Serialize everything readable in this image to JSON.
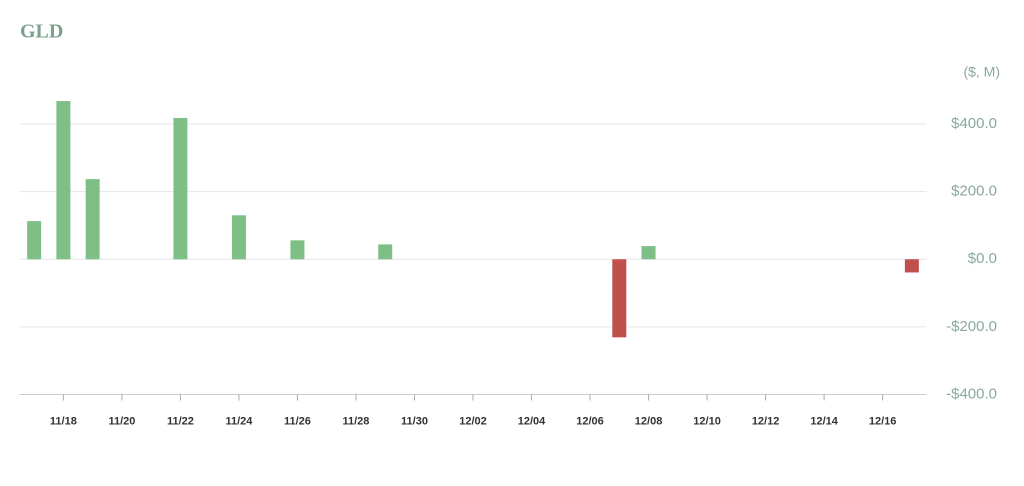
{
  "chart_data": {
    "type": "bar",
    "title": "GLD",
    "y_label": "($, M)",
    "categories": [
      null,
      "11/18",
      null,
      "11/20",
      null,
      "11/22",
      null,
      "11/24",
      null,
      "11/26",
      null,
      "11/28",
      null,
      "11/30",
      null,
      "12/02",
      null,
      "12/04",
      null,
      "12/06",
      null,
      "12/08",
      null,
      "12/10",
      null,
      "12/12",
      null,
      "12/14",
      null,
      "12/16",
      null
    ],
    "values": [
      113,
      468,
      237,
      null,
      null,
      418,
      null,
      130,
      null,
      56,
      null,
      null,
      44,
      null,
      null,
      null,
      null,
      null,
      null,
      null,
      -231,
      39,
      null,
      null,
      null,
      null,
      null,
      null,
      null,
      null,
      -39
    ],
    "positive_color": "#7dbf85",
    "negative_color": "#c0504d",
    "ylim": [
      -400,
      470
    ],
    "yticks": [
      {
        "value": -400,
        "label": "-$400.0"
      },
      {
        "value": -200,
        "label": "-$200.0"
      },
      {
        "value": 0,
        "label": "$0.0"
      },
      {
        "value": 200,
        "label": "$200.0"
      },
      {
        "value": 400,
        "label": "$400.0"
      }
    ],
    "grid": true
  }
}
